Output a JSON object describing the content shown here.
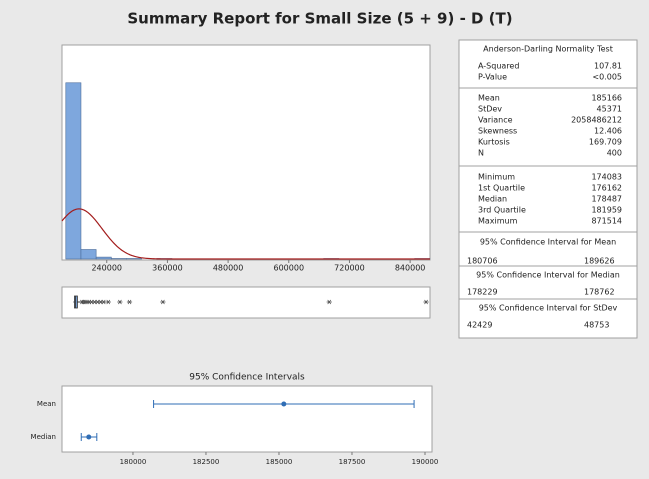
{
  "title": "Summary Report for Small Size (5 + 9) - D (T)",
  "chart_data": [
    {
      "type": "histogram",
      "bins": [
        159000,
        189000,
        219000,
        249000,
        279000,
        309000,
        339000,
        369000,
        399000,
        429000,
        459000,
        489000,
        519000,
        549000,
        579000,
        609000,
        639000,
        669000,
        699000,
        729000,
        759000,
        789000,
        819000,
        849000,
        879000
      ],
      "counts": [
        371,
        20,
        4,
        1,
        1,
        0,
        1,
        0,
        0,
        0,
        0,
        0,
        0,
        0,
        0,
        0,
        0,
        1,
        0,
        0,
        0,
        0,
        0,
        1
      ],
      "color": "#7ea7dd",
      "curve_color": "#a31d1d",
      "xlim": [
        151500,
        879300
      ],
      "ylim": [
        0,
        400
      ],
      "xticks": [
        240000,
        360000,
        480000,
        600000,
        720000,
        840000
      ]
    },
    {
      "type": "boxplot",
      "q1": 176162,
      "median": 178487,
      "q3": 181959,
      "whisker_low": 174083,
      "whisker_high": 190500,
      "outliers": [
        191000,
        194000,
        197000,
        201000,
        205000,
        210000,
        216000,
        222000,
        228000,
        234000,
        243000,
        266000,
        285000,
        351000,
        680000,
        871514
      ],
      "color": "#7ea7dd",
      "xlim": [
        151500,
        879300
      ]
    },
    {
      "type": "interval",
      "title": "95% Confidence Intervals",
      "categories": [
        "Mean",
        "Median"
      ],
      "values": [
        185166,
        178487
      ],
      "lower": [
        180706,
        178229
      ],
      "upper": [
        189626,
        178762
      ],
      "color": "#2f6db5",
      "xlim": [
        177570,
        190240
      ],
      "xticks": [
        180000,
        182500,
        185000,
        187500,
        190000
      ]
    }
  ],
  "stats": {
    "sections": [
      {
        "title": "Anderson-Darling Normality Test",
        "rows": [
          [
            "A-Squared",
            107.81
          ],
          [
            "P-Value",
            "<0.005"
          ]
        ]
      },
      {
        "rows": [
          [
            "Mean",
            185166
          ],
          [
            "StDev",
            45371
          ],
          [
            "Variance",
            2058486212
          ],
          [
            "Skewness",
            12.406
          ],
          [
            "Kurtosis",
            169.709
          ],
          [
            "N",
            400
          ]
        ]
      },
      {
        "rows": [
          [
            "Minimum",
            174083
          ],
          [
            "1st Quartile",
            176162
          ],
          [
            "Median",
            178487
          ],
          [
            "3rd Quartile",
            181959
          ],
          [
            "Maximum",
            871514
          ]
        ]
      },
      {
        "title": "95% Confidence Interval for Mean",
        "rows": [
          [
            180706,
            189626
          ]
        ]
      },
      {
        "title": "95% Confidence Interval for Median",
        "rows": [
          [
            178229,
            178762
          ]
        ]
      },
      {
        "title": "95% Confidence Interval for StDev",
        "rows": [
          [
            42429,
            48753
          ]
        ]
      }
    ]
  }
}
